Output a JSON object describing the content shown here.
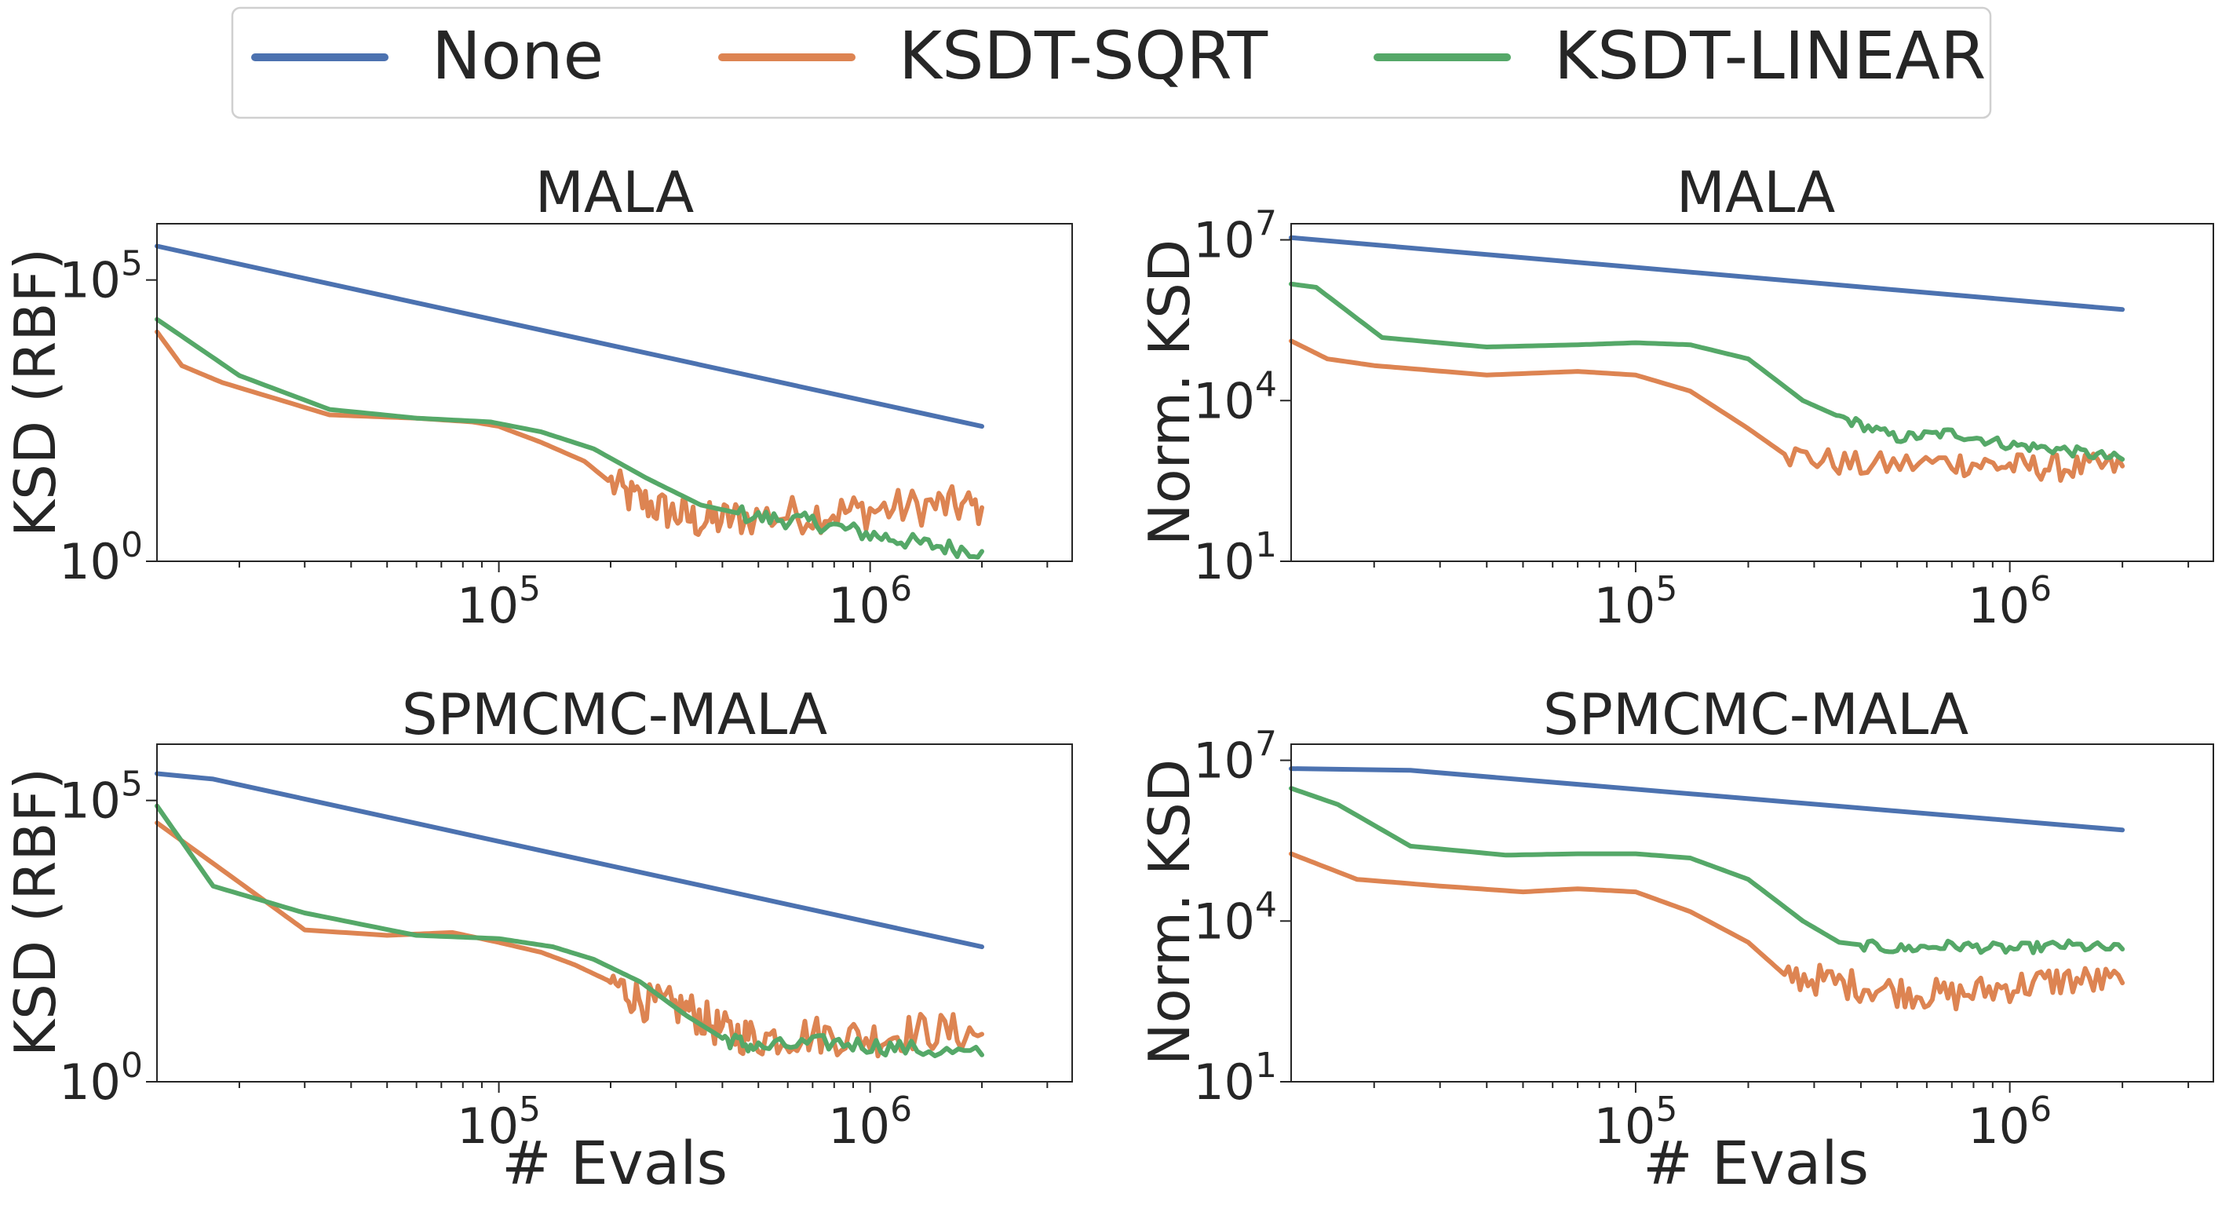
{
  "legend": [
    {
      "label": "None",
      "color": "#4c72b0"
    },
    {
      "label": "KSDT-SQRT",
      "color": "#dd8452"
    },
    {
      "label": "KSDT-LINEAR",
      "color": "#55a868"
    }
  ],
  "chart_data": [
    {
      "type": "line",
      "title": "MALA",
      "xlabel": "",
      "ylabel": "KSD (RBF)",
      "xscale": "log",
      "yscale": "log",
      "xlim": [
        12000,
        3500000
      ],
      "ylim": [
        1,
        1000000
      ],
      "xticks": [
        {
          "value": 100000,
          "base": "10",
          "exp": "5"
        },
        {
          "value": 1000000,
          "base": "10",
          "exp": "6"
        }
      ],
      "yticks": [
        {
          "value": 1,
          "base": "10",
          "exp": "0"
        },
        {
          "value": 100000,
          "base": "10",
          "exp": "5"
        }
      ],
      "series": [
        {
          "name": "None",
          "color": "#4c72b0",
          "x": [
            12000,
            2000000
          ],
          "y": [
            400000,
            250
          ]
        },
        {
          "name": "KSDT-SQRT",
          "color": "#dd8452",
          "noise": 0.35,
          "noise_start": 200000,
          "x": [
            12000,
            14000,
            18000,
            35000,
            60000,
            85000,
            100000,
            130000,
            170000,
            220000,
            280000,
            350000,
            450000,
            700000,
            1000000,
            1500000,
            2000000
          ],
          "y": [
            12000,
            3000,
            1500,
            400,
            350,
            300,
            250,
            130,
            60,
            15,
            8,
            5,
            6,
            7,
            8,
            10,
            9
          ]
        },
        {
          "name": "KSDT-LINEAR",
          "color": "#55a868",
          "noise": 0.15,
          "noise_start": 450000,
          "x": [
            12000,
            20000,
            35000,
            60000,
            95000,
            130000,
            180000,
            250000,
            350000,
            500000,
            700000,
            1000000,
            1400000,
            2000000
          ],
          "y": [
            20000,
            2000,
            500,
            350,
            300,
            200,
            100,
            30,
            10,
            6,
            5,
            3,
            2,
            1.5
          ]
        }
      ]
    },
    {
      "type": "line",
      "title": "MALA",
      "xlabel": "",
      "ylabel": "Norm. KSD",
      "xscale": "log",
      "yscale": "log",
      "xlim": [
        12000,
        3500000
      ],
      "ylim": [
        10,
        20000000
      ],
      "xticks": [
        {
          "value": 100000,
          "base": "10",
          "exp": "5"
        },
        {
          "value": 1000000,
          "base": "10",
          "exp": "6"
        }
      ],
      "yticks": [
        {
          "value": 10,
          "base": "10",
          "exp": "1"
        },
        {
          "value": 10000,
          "base": "10",
          "exp": "4"
        },
        {
          "value": 10000000,
          "base": "10",
          "exp": "7"
        }
      ],
      "series": [
        {
          "name": "None",
          "color": "#4c72b0",
          "x": [
            12000,
            2000000
          ],
          "y": [
            11000000,
            500000
          ]
        },
        {
          "name": "KSDT-SQRT",
          "color": "#dd8452",
          "noise": 0.25,
          "noise_start": 250000,
          "x": [
            12000,
            15000,
            20000,
            40000,
            70000,
            100000,
            140000,
            200000,
            250000,
            400000,
            700000,
            1000000,
            1400000,
            2000000
          ],
          "y": [
            130000,
            60000,
            45000,
            30000,
            35000,
            30000,
            15000,
            3000,
            1000,
            600,
            700,
            600,
            550,
            600
          ]
        },
        {
          "name": "KSDT-LINEAR",
          "color": "#55a868",
          "noise": 0.1,
          "noise_start": 350000,
          "x": [
            12000,
            14000,
            21000,
            40000,
            70000,
            100000,
            140000,
            200000,
            280000,
            350000,
            500000,
            700000,
            1000000,
            1400000,
            2000000
          ],
          "y": [
            1500000,
            1300000,
            150000,
            100000,
            110000,
            120000,
            110000,
            60000,
            10000,
            5000,
            2000,
            2500,
            1500,
            1200,
            800
          ]
        }
      ]
    },
    {
      "type": "line",
      "title": "SPMCMC-MALA",
      "xlabel": "# Evals",
      "ylabel": "KSD (RBF)",
      "xscale": "log",
      "yscale": "log",
      "xlim": [
        12000,
        3500000
      ],
      "ylim": [
        1,
        1000000
      ],
      "xticks": [
        {
          "value": 100000,
          "base": "10",
          "exp": "5"
        },
        {
          "value": 1000000,
          "base": "10",
          "exp": "6"
        }
      ],
      "yticks": [
        {
          "value": 1,
          "base": "10",
          "exp": "0"
        },
        {
          "value": 100000,
          "base": "10",
          "exp": "5"
        }
      ],
      "series": [
        {
          "name": "None",
          "color": "#4c72b0",
          "x": [
            12000,
            17000,
            2000000
          ],
          "y": [
            300000,
            240000,
            250
          ]
        },
        {
          "name": "KSDT-SQRT",
          "color": "#dd8452",
          "noise": 0.35,
          "noise_start": 200000,
          "x": [
            12000,
            20000,
            30000,
            50000,
            75000,
            100000,
            130000,
            160000,
            200000,
            250000,
            320000,
            400000,
            500000,
            700000,
            1000000,
            1400000,
            2000000
          ],
          "y": [
            40000,
            3500,
            500,
            400,
            450,
            300,
            200,
            120,
            60,
            25,
            20,
            8,
            6,
            7,
            6,
            8,
            7
          ]
        },
        {
          "name": "KSDT-LINEAR",
          "color": "#55a868",
          "noise": 0.15,
          "noise_start": 400000,
          "x": [
            12000,
            17000,
            30000,
            60000,
            100000,
            140000,
            180000,
            240000,
            320000,
            400000,
            500000,
            800000,
            1200000,
            2000000
          ],
          "y": [
            80000,
            3000,
            1000,
            400,
            350,
            250,
            150,
            60,
            15,
            6,
            4,
            5,
            4,
            3
          ]
        }
      ]
    },
    {
      "type": "line",
      "title": "SPMCMC-MALA",
      "xlabel": "# Evals",
      "ylabel": "Norm. KSD",
      "xscale": "log",
      "yscale": "log",
      "xlim": [
        12000,
        3500000
      ],
      "ylim": [
        10,
        20000000
      ],
      "xticks": [
        {
          "value": 100000,
          "base": "10",
          "exp": "5"
        },
        {
          "value": 1000000,
          "base": "10",
          "exp": "6"
        }
      ],
      "yticks": [
        {
          "value": 10,
          "base": "10",
          "exp": "1"
        },
        {
          "value": 10000,
          "base": "10",
          "exp": "4"
        },
        {
          "value": 10000000,
          "base": "10",
          "exp": "7"
        }
      ],
      "series": [
        {
          "name": "None",
          "color": "#4c72b0",
          "x": [
            12000,
            25000,
            2000000
          ],
          "y": [
            7000000,
            6500000,
            500000
          ]
        },
        {
          "name": "KSDT-SQRT",
          "color": "#dd8452",
          "noise": 0.3,
          "noise_start": 250000,
          "x": [
            12000,
            18000,
            30000,
            50000,
            70000,
            100000,
            140000,
            200000,
            250000,
            350000,
            500000,
            700000,
            1000000,
            1400000,
            2000000
          ],
          "y": [
            180000,
            60000,
            45000,
            35000,
            40000,
            35000,
            15000,
            4000,
            1000,
            700,
            500,
            400,
            600,
            800,
            700
          ]
        },
        {
          "name": "KSDT-LINEAR",
          "color": "#55a868",
          "noise": 0.1,
          "noise_start": 400000,
          "x": [
            12000,
            16000,
            25000,
            45000,
            70000,
            100000,
            140000,
            200000,
            280000,
            350000,
            500000,
            700000,
            1000000,
            1400000,
            2000000
          ],
          "y": [
            3000000,
            1500000,
            250000,
            170000,
            180000,
            180000,
            150000,
            60000,
            10000,
            4000,
            3000,
            3500,
            3000,
            3500,
            3000
          ]
        }
      ]
    }
  ]
}
